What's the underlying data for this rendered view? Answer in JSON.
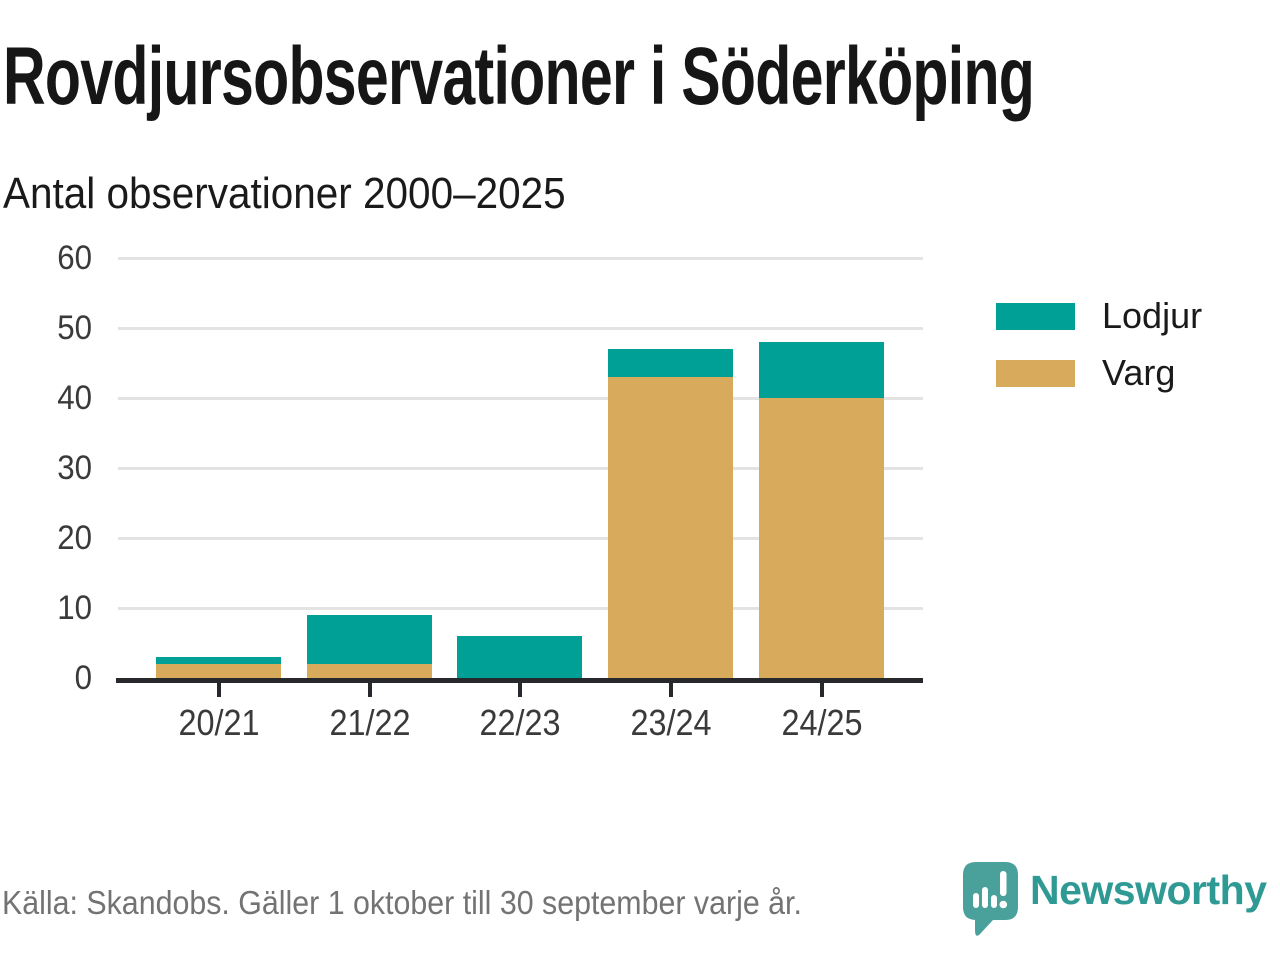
{
  "header": {
    "title": "Rovdjursobservationer i Söderköping",
    "subtitle": "Antal observationer 2000–2025"
  },
  "chart_data": {
    "type": "bar",
    "stacked": true,
    "title": "Rovdjursobservationer i Söderköping",
    "subtitle": "Antal observationer 2000–2025",
    "categories": [
      "20/21",
      "21/22",
      "22/23",
      "23/24",
      "24/25"
    ],
    "series": [
      {
        "name": "Lodjur",
        "color": "#00A096",
        "values": [
          1,
          7,
          6,
          4,
          8
        ]
      },
      {
        "name": "Varg",
        "color": "#D8AB5C",
        "values": [
          2,
          2,
          0,
          43,
          40
        ]
      }
    ],
    "stack_order_bottom_to_top": [
      "Varg",
      "Lodjur"
    ],
    "xlabel": "",
    "ylabel": "",
    "ylim": [
      0,
      60
    ],
    "y_ticks": [
      60,
      50,
      40,
      30,
      20,
      10,
      0
    ],
    "grid": true,
    "legend_position": "right"
  },
  "footer": {
    "source": "Källa: Skandobs. Gäller 1 oktober till 30 september varje år.",
    "brand": "Newsworthy"
  },
  "colors": {
    "lodjur": "#00A096",
    "varg": "#D8AB5C",
    "axis": "#26282B",
    "gridline": "#E3E3E3",
    "title_text": "#161616",
    "tick_text": "#3A3A3A",
    "muted_text": "#737373",
    "brand_teal": "#2F9A94"
  }
}
